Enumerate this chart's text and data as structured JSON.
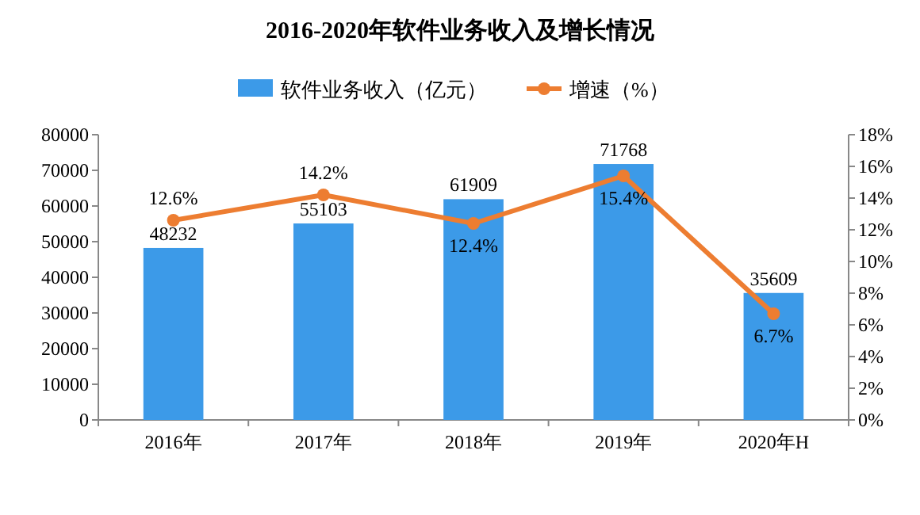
{
  "chart_data": {
    "type": "bar",
    "title": "2016-2020年软件业务收入及增长情况",
    "categories": [
      "2016年",
      "2017年",
      "2018年",
      "2019年",
      "2020年H"
    ],
    "series": [
      {
        "name": "软件业务收入（亿元）",
        "color": "#3c9ae8",
        "values": [
          48232,
          55103,
          61909,
          71768,
          35609
        ]
      },
      {
        "name": "增速（%）",
        "type": "line",
        "axis": "y2",
        "color": "#ed7d31",
        "values": [
          12.6,
          14.2,
          12.4,
          15.4,
          6.7
        ],
        "value_labels": [
          "12.6%",
          "14.2%",
          "12.4%",
          "15.4%",
          "6.7%"
        ]
      }
    ],
    "ylim": [
      0,
      80000
    ],
    "yticks": [
      0,
      10000,
      20000,
      30000,
      40000,
      50000,
      60000,
      70000,
      80000
    ],
    "y2lim": [
      0,
      18
    ],
    "y2ticks": [
      {
        "value": 0,
        "label": "0%"
      },
      {
        "value": 2,
        "label": "2%"
      },
      {
        "value": 4,
        "label": "4%"
      },
      {
        "value": 6,
        "label": "6%"
      },
      {
        "value": 8,
        "label": "8%"
      },
      {
        "value": 10,
        "label": "10%"
      },
      {
        "value": 12,
        "label": "12%"
      },
      {
        "value": 14,
        "label": "14%"
      },
      {
        "value": 16,
        "label": "16%"
      },
      {
        "value": 18,
        "label": "18%"
      }
    ],
    "data_labels": true,
    "legend": "top",
    "marker": "circle",
    "line_style": "solid"
  }
}
